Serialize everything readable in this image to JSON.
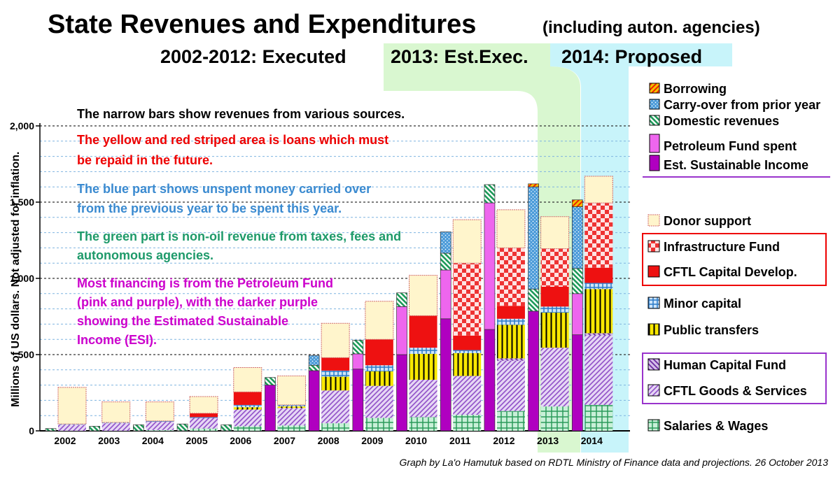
{
  "chart_data": {
    "type": "bar",
    "title": "State Revenues and Expenditures",
    "title_note": "(including auton. agencies)",
    "subtitle_executed": "2002-2012: Executed",
    "subtitle_est": "2013: Est.Exec.",
    "subtitle_proposed": "2014: Proposed",
    "ylabel": "Millions of US dollars.  Not adjusted for inflation.",
    "ylim": [
      0,
      2000
    ],
    "yticks": [
      0,
      500,
      1000,
      1500,
      2000
    ],
    "ytick_labels": [
      "0",
      "500",
      "1,000",
      "1,500",
      "2,000"
    ],
    "grid": "dotted",
    "categories": [
      "2002",
      "2003",
      "2004",
      "2005",
      "2006",
      "2007",
      "2008",
      "2009",
      "2010",
      "2011",
      "2012",
      "2013",
      "2014"
    ],
    "highlight": {
      "est_year": "2013",
      "proposed_year": "2014"
    },
    "revenue_series": [
      {
        "name": "Est. Sustainable Income",
        "key": "esi",
        "color": "#b000c0",
        "values": [
          0,
          0,
          0,
          0,
          0,
          300,
          395,
          405,
          500,
          735,
          665,
          785,
          630
        ]
      },
      {
        "name": "Petroleum Fund spent",
        "key": "pf",
        "color": "#ee66ee",
        "values": [
          0,
          0,
          0,
          0,
          0,
          0,
          0,
          100,
          315,
          320,
          830,
          0,
          270
        ]
      },
      {
        "name": "Domestic revenues",
        "key": "dom",
        "color": "#2a9a5a",
        "values": [
          15,
          30,
          40,
          45,
          40,
          50,
          35,
          90,
          90,
          110,
          120,
          145,
          165
        ]
      },
      {
        "name": "Carry-over from prior year",
        "key": "carry",
        "color": "#3a8ad0",
        "values": [
          0,
          0,
          0,
          0,
          0,
          0,
          65,
          0,
          0,
          140,
          0,
          670,
          405
        ]
      },
      {
        "name": "Borrowing",
        "key": "borrow",
        "color": "#f5c000",
        "values": [
          0,
          0,
          0,
          0,
          0,
          0,
          0,
          0,
          0,
          0,
          0,
          20,
          45
        ]
      }
    ],
    "expenditure_series": [
      {
        "name": "Salaries & Wages",
        "key": "sal",
        "color": "#2a9a5a",
        "values": [
          0,
          0,
          5,
          15,
          30,
          35,
          50,
          85,
          90,
          105,
          130,
          160,
          170
        ]
      },
      {
        "name": "CFTL Goods & Services",
        "key": "gs",
        "color": "#a070d0",
        "values": [
          40,
          50,
          55,
          70,
          110,
          115,
          215,
          210,
          245,
          255,
          330,
          385,
          455
        ]
      },
      {
        "name": "Human Capital Fund",
        "key": "hcf",
        "color": "#7a40b0",
        "values": [
          0,
          0,
          0,
          0,
          0,
          0,
          0,
          0,
          0,
          0,
          15,
          0,
          15
        ]
      },
      {
        "name": "Public transfers",
        "key": "pt",
        "color": "#f5e000",
        "values": [
          0,
          0,
          0,
          0,
          15,
          10,
          90,
          95,
          170,
          150,
          220,
          230,
          290
        ]
      },
      {
        "name": "Minor capital",
        "key": "mc",
        "color": "#3a8ad0",
        "values": [
          5,
          5,
          5,
          5,
          15,
          10,
          40,
          40,
          40,
          20,
          40,
          40,
          40
        ]
      },
      {
        "name": "CFTL Capital Develop.",
        "key": "cap",
        "color": "#ee1111",
        "values": [
          0,
          0,
          0,
          25,
          85,
          0,
          85,
          170,
          210,
          95,
          85,
          130,
          100
        ]
      },
      {
        "name": "Infrastructure Fund",
        "key": "inf",
        "color": "#ee3333",
        "values": [
          0,
          0,
          0,
          0,
          0,
          0,
          0,
          0,
          0,
          475,
          380,
          250,
          425
        ]
      },
      {
        "name": "Donor support",
        "key": "donor",
        "color": "#fff5cc",
        "values": [
          240,
          135,
          125,
          110,
          160,
          190,
          225,
          250,
          265,
          285,
          250,
          210,
          175
        ]
      }
    ],
    "annotations": [
      {
        "text": "The narrow bars show revenues from various sources.",
        "color": "#000000"
      },
      {
        "text": "The yellow and red striped area is loans which must",
        "color": "#ee0000"
      },
      {
        "text": "be repaid in the future.",
        "color": "#ee0000"
      },
      {
        "text": "The blue part shows unspent money carried over",
        "color": "#3a8ad0"
      },
      {
        "text": "from the previous year to be spent this year.",
        "color": "#3a8ad0"
      },
      {
        "text": "The green part is non-oil revenue from taxes, fees and",
        "color": "#1e9a6a"
      },
      {
        "text": "autonomous agencies.",
        "color": "#1e9a6a"
      },
      {
        "text": "Most financing is from the Petroleum Fund",
        "color": "#cc00cc"
      },
      {
        "text": "(pink and purple), with the darker purple",
        "color": "#cc00cc"
      },
      {
        "text": "showing the Estimated Sustainable",
        "color": "#cc00cc"
      },
      {
        "text": "Income (ESI).",
        "color": "#cc00cc"
      }
    ],
    "legend": {
      "revenue_labels": [
        {
          "text": "Borrowing",
          "color": "#ee0000"
        },
        {
          "text": "Carry-over from prior year",
          "color": "#3a8ad0"
        },
        {
          "text": "Domestic revenues",
          "color": "#1e9a6a"
        },
        {
          "text": "Petroleum Fund spent",
          "color": "#cc33cc"
        },
        {
          "text": "Est. Sustainable Income",
          "color": "#990099"
        }
      ],
      "expenditure_labels": [
        "Donor support",
        "Infrastructure Fund",
        "CFTL Capital Develop.",
        "Minor capital",
        "Public transfers",
        "Human Capital Fund",
        "CFTL Goods & Services",
        "Salaries & Wages"
      ]
    },
    "credit": "Graph by La'o Hamutuk based on RDTL Ministry of Finance data and projections.  26 October 2013"
  }
}
